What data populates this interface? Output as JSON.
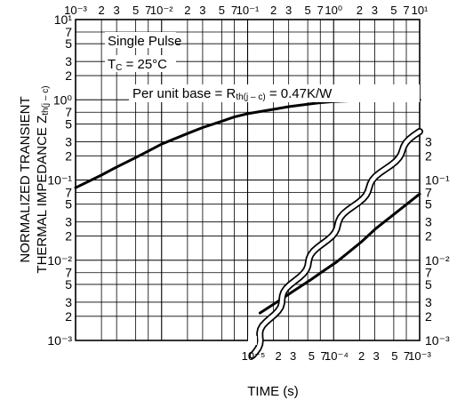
{
  "chart_data": {
    "type": "line",
    "title": "",
    "xlabel": "TIME (s)",
    "ylabel_line1": "NORMALIZED TRANSIENT",
    "ylabel_line2": "THERMAL IMPEDANCE Z",
    "ylabel_sub": "th(j – c)",
    "x_scale": "log",
    "y_scale": "log",
    "xlim_main": [
      0.001,
      10
    ],
    "xlim_inset": [
      1e-05,
      0.001
    ],
    "ylim": [
      0.001,
      10
    ],
    "grid": true,
    "annotations": {
      "single_pulse": "Single Pulse",
      "tc_prefix": "T",
      "tc_sub": "C",
      "tc_value": " = 25°C",
      "per_unit_prefix": "Per unit base = R",
      "per_unit_sub": "th(j – c)",
      "per_unit_value": " = 0.47K/W"
    },
    "top_x_ticks": [
      "10⁻³",
      "2",
      "3",
      "5",
      "7",
      "10⁻²",
      "2",
      "3",
      "5",
      "7",
      "10⁻¹",
      "2",
      "3",
      "5",
      "7",
      "10⁰",
      "2",
      "3",
      "5",
      "7",
      "10¹"
    ],
    "bottom_x_ticks": [
      "10⁻⁵",
      "2",
      "3",
      "5",
      "7",
      "10⁻⁴",
      "2",
      "3",
      "5",
      "7",
      "10⁻³"
    ],
    "left_y_ticks": [
      "10¹",
      "7",
      "5",
      "3",
      "2",
      "10⁰",
      "7",
      "5",
      "3",
      "2",
      "10⁻¹",
      "7",
      "5",
      "3",
      "2",
      "10⁻²",
      "7",
      "5",
      "3",
      "2",
      "10⁻³"
    ],
    "right_y_ticks": [
      "3",
      "2",
      "10⁻¹",
      "7",
      "5",
      "3",
      "2",
      "10⁻²",
      "7",
      "5",
      "3",
      "2",
      "10⁻³"
    ],
    "series": [
      {
        "axis": "top",
        "x": [
          0.001,
          0.002,
          0.003,
          0.005,
          0.007,
          0.01,
          0.02,
          0.03,
          0.05,
          0.07,
          0.1,
          0.2,
          0.3,
          0.5,
          0.7,
          1,
          2,
          3,
          5,
          7,
          10
        ],
        "y": [
          0.08,
          0.115,
          0.145,
          0.19,
          0.23,
          0.28,
          0.38,
          0.45,
          0.54,
          0.61,
          0.67,
          0.76,
          0.82,
          0.88,
          0.92,
          0.95,
          0.98,
          0.99,
          1.0,
          1.0,
          1.0
        ]
      },
      {
        "axis": "bottom",
        "x": [
          1.2e-05,
          2e-05,
          3e-05,
          5e-05,
          7e-05,
          0.0001,
          0.0002,
          0.0003,
          0.0005,
          0.0007,
          0.001
        ],
        "y": [
          0.0022,
          0.0031,
          0.0041,
          0.0058,
          0.0074,
          0.0095,
          0.017,
          0.025,
          0.038,
          0.05,
          0.067
        ]
      }
    ]
  }
}
